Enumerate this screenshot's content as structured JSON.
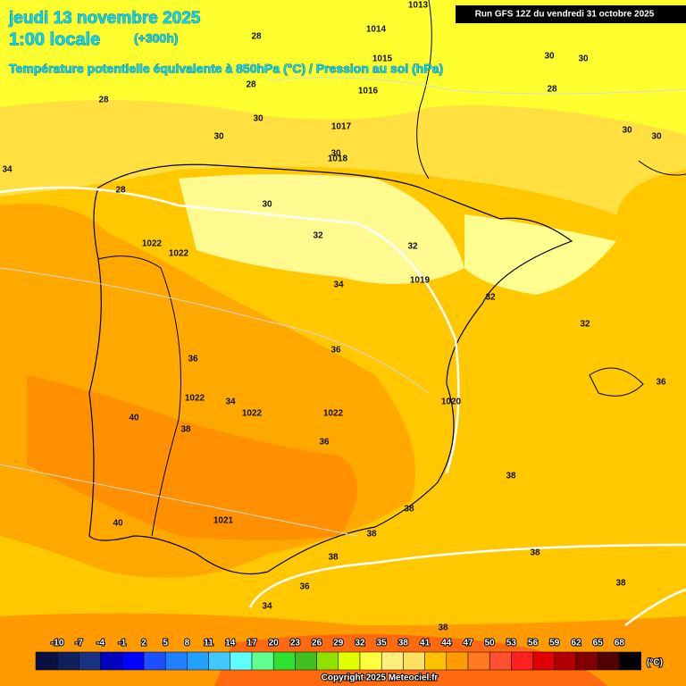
{
  "header": {
    "date": "jeudi 13 novembre 2025",
    "time": "1:00 locale",
    "lead": "(+300h)",
    "subtitle": "Température potentielle équivalente à 850hPa (°C) / Pression au sol (hPa)",
    "run": "Run GFS 12Z du vendredi 31 octobre 2025"
  },
  "map_labels": [
    1013,
    1014,
    28,
    1015,
    30,
    30,
    28,
    1016,
    28,
    28,
    30,
    1017,
    30,
    30,
    30,
    30,
    1018,
    34,
    28,
    30,
    32,
    32,
    1022,
    1022,
    1019,
    34,
    32,
    32,
    36,
    36,
    36,
    1022,
    34,
    1022,
    1022,
    1020,
    40,
    38,
    36,
    38,
    40,
    1021,
    38,
    38,
    38,
    38,
    36,
    38,
    34,
    38
  ],
  "legend": {
    "unit": "(°C)",
    "ticks": [
      -10,
      -7,
      -4,
      -1,
      2,
      5,
      8,
      11,
      14,
      17,
      20,
      23,
      26,
      29,
      32,
      35,
      38,
      41,
      44,
      47,
      50,
      53,
      56,
      59,
      62,
      65,
      68
    ],
    "colors": [
      "#0a1040",
      "#10205a",
      "#1a3080",
      "#0000c0",
      "#0000ff",
      "#1a50ff",
      "#2080ff",
      "#20a0ff",
      "#40c8ff",
      "#60ffff",
      "#60ff90",
      "#30e030",
      "#40c020",
      "#90e000",
      "#e0ff00",
      "#ffff40",
      "#ffee80",
      "#ffe060",
      "#ffc000",
      "#ff9a00",
      "#ff7a20",
      "#ff5030",
      "#ff2020",
      "#e00000",
      "#b00000",
      "#800000",
      "#500000",
      "#000000"
    ]
  },
  "footer": {
    "copyright": "Copyright 2025 Meteociel.fr"
  }
}
